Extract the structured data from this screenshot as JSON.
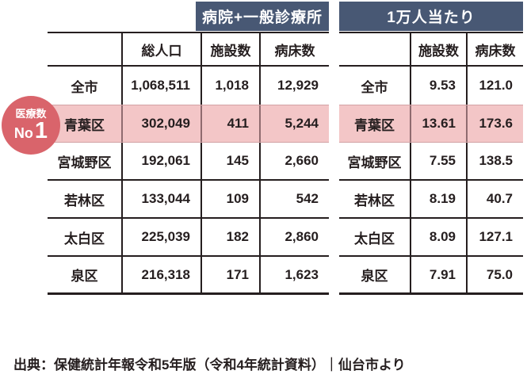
{
  "colors": {
    "banner_navy": "#485874",
    "highlight_pink": "#f3c6c7",
    "badge_red": "#d9646b",
    "text_dark": "#251e1f"
  },
  "badge": {
    "line1": "医療数",
    "no": "No",
    "rank": "1"
  },
  "chart_data": [
    {
      "type": "table",
      "title": "病院+一般診療所",
      "columns": [
        "総人口",
        "施設数",
        "病床数"
      ],
      "rows": [
        [
          "全市",
          "1,068,511",
          "1,018",
          "12,929"
        ],
        [
          "青葉区",
          "302,049",
          "411",
          "5,244"
        ],
        [
          "宮城野区",
          "192,061",
          "145",
          "2,660"
        ],
        [
          "若林区",
          "133,044",
          "109",
          "542"
        ],
        [
          "太白区",
          "225,039",
          "182",
          "2,860"
        ],
        [
          "泉区",
          "216,318",
          "171",
          "1,623"
        ]
      ],
      "highlight_row": "青葉区"
    },
    {
      "type": "table",
      "title": "1万人当たり",
      "columns": [
        "施設数",
        "病床数"
      ],
      "rows": [
        [
          "全市",
          "9.53",
          "121.0"
        ],
        [
          "青葉区",
          "13.61",
          "173.6"
        ],
        [
          "宮城野区",
          "7.55",
          "138.5"
        ],
        [
          "若林区",
          "8.19",
          "40.7"
        ],
        [
          "太白区",
          "8.09",
          "127.1"
        ],
        [
          "泉区",
          "7.91",
          "75.0"
        ]
      ],
      "highlight_row": "青葉区"
    }
  ],
  "footer": {
    "source": "出典：保健統計年報令和5年版（令和4年統計資料）｜仙台市より"
  }
}
